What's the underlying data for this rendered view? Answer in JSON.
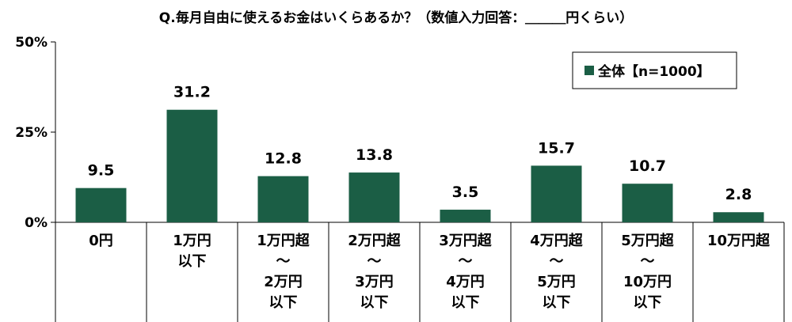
{
  "chart_data": {
    "type": "bar",
    "title": "Q.毎月自由に使えるお金はいくらあるか？（数値入力回答：＿＿＿円くらい）",
    "categories": [
      [
        "0円"
      ],
      [
        "1万円",
        "以下"
      ],
      [
        "1万円超",
        "～",
        "2万円",
        "以下"
      ],
      [
        "2万円超",
        "～",
        "3万円",
        "以下"
      ],
      [
        "3万円超",
        "～",
        "4万円",
        "以下"
      ],
      [
        "4万円超",
        "～",
        "5万円",
        "以下"
      ],
      [
        "5万円超",
        "～",
        "10万円",
        "以下"
      ],
      [
        "10万円超"
      ]
    ],
    "series": [
      {
        "name": "全体【n=1000】",
        "values": [
          9.5,
          31.2,
          12.8,
          13.8,
          3.5,
          15.7,
          10.7,
          2.8
        ]
      }
    ],
    "value_labels": [
      "9.5",
      "31.2",
      "12.8",
      "13.8",
      "3.5",
      "15.7",
      "10.7",
      "2.8"
    ],
    "ylim": [
      0,
      50
    ],
    "yticks": [
      0,
      25,
      50
    ],
    "ytick_labels": [
      "0%",
      "25%",
      "50%"
    ],
    "grid": false,
    "legend_position": "top-right",
    "bar_color": "#1b5e45"
  }
}
